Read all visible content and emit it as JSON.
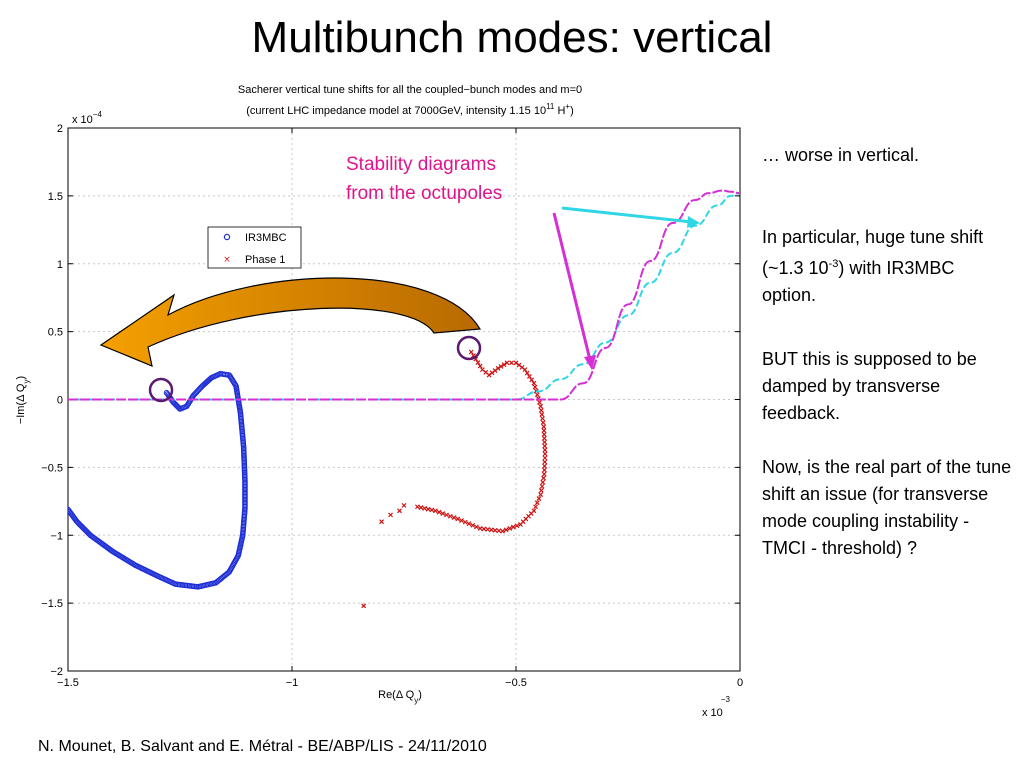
{
  "slide": {
    "title": "Multibunch modes: vertical",
    "footer": "N. Mounet, B. Salvant and E. Métral - BE/ABP/LIS - 24/11/2010",
    "notes": {
      "p1": "… worse in vertical.",
      "p2": {
        "a": "In particular, huge tune shift (~1.3 10",
        "sup": "-3",
        "b": ") with IR3MBC option."
      },
      "p3": "BUT this is supposed to be damped by transverse feedback.",
      "p4": "Now, is the real part of the tune shift an issue (for transverse mode coupling instability - TMCI - threshold) ?"
    },
    "callout": {
      "line1": "Stability diagrams",
      "line2": "from the octupoles",
      "color": "#e0158c"
    }
  },
  "chart_data": {
    "type": "scatter",
    "title": {
      "line1": "Sacherer vertical tune shifts for all the coupled−bunch modes and m=0",
      "line2a": "(current LHC impedance model at 7000GeV, intensity 1.15 10",
      "line2sup": "11",
      "line2b": " H",
      "line2sup2": "+",
      "line2c": ")"
    },
    "xlabel": {
      "main": "Re(Δ Q",
      "sub": "y",
      "end": ")"
    },
    "ylabel": {
      "main": "−Im(Δ Q",
      "sub": "y",
      "end": ")"
    },
    "xlim": [
      -1.5,
      0
    ],
    "ylim": [
      -2,
      2
    ],
    "x_multiplier": {
      "text": "x 10",
      "exp": "−3"
    },
    "y_multiplier": {
      "text": "x 10",
      "exp": "−4"
    },
    "xticks": [
      "−1.5",
      "−1",
      "−0.5",
      "0"
    ],
    "yticks": [
      "−2",
      "−1.5",
      "−1",
      "−0.5",
      "0",
      "0.5",
      "1",
      "1.5",
      "2"
    ],
    "grid": true,
    "legend_position": "upper-left",
    "series": [
      {
        "name": "IR3MBC",
        "color": "#1f2fd6",
        "marker": "circle",
        "x": [
          -1.28,
          -1.265,
          -1.25,
          -1.235,
          -1.22,
          -1.2,
          -1.18,
          -1.16,
          -1.14,
          -1.125,
          -1.115,
          -1.108,
          -1.105,
          -1.105,
          -1.11,
          -1.12,
          -1.14,
          -1.17,
          -1.21,
          -1.26,
          -1.3,
          -1.35,
          -1.4,
          -1.45,
          -1.48,
          -1.5
        ],
        "y": [
          0.05,
          -0.02,
          -0.07,
          -0.05,
          0.03,
          0.1,
          0.16,
          0.19,
          0.18,
          0.1,
          -0.1,
          -0.35,
          -0.6,
          -0.8,
          -1.0,
          -1.15,
          -1.27,
          -1.35,
          -1.38,
          -1.36,
          -1.3,
          -1.22,
          -1.12,
          -1.0,
          -0.9,
          -0.81
        ]
      },
      {
        "name": "Phase 1",
        "color": "#cc1111",
        "marker": "x",
        "x": [
          -0.6,
          -0.575,
          -0.56,
          -0.54,
          -0.52,
          -0.5,
          -0.48,
          -0.46,
          -0.445,
          -0.438,
          -0.435,
          -0.437,
          -0.445,
          -0.46,
          -0.49,
          -0.53,
          -0.58,
          -0.63,
          -0.68,
          -0.72,
          -0.75,
          -0.76,
          -0.78,
          -0.8,
          -0.84
        ],
        "y": [
          0.35,
          0.22,
          0.18,
          0.23,
          0.27,
          0.27,
          0.22,
          0.12,
          -0.05,
          -0.2,
          -0.4,
          -0.55,
          -0.7,
          -0.82,
          -0.92,
          -0.97,
          -0.95,
          -0.88,
          -0.82,
          -0.79,
          -0.78,
          -0.82,
          -0.85,
          -0.9,
          -1.52
        ]
      },
      {
        "name": "",
        "color": "#2fd6e6",
        "marker": "line",
        "x": [
          -1.5,
          -0.5,
          -0.45,
          -0.4,
          -0.35,
          -0.3,
          -0.25,
          -0.2,
          -0.15,
          -0.1,
          -0.05,
          -0.02,
          0
        ],
        "y": [
          0,
          0,
          0.06,
          0.15,
          0.26,
          0.42,
          0.62,
          0.86,
          1.08,
          1.28,
          1.43,
          1.5,
          1.52
        ]
      },
      {
        "name": "",
        "color": "#d62fd6",
        "marker": "line",
        "x": [
          -1.5,
          -0.4,
          -0.35,
          -0.3,
          -0.25,
          -0.2,
          -0.15,
          -0.1,
          -0.07,
          -0.04,
          -0.02,
          0
        ],
        "y": [
          0,
          0,
          0.12,
          0.38,
          0.7,
          1.02,
          1.3,
          1.47,
          1.52,
          1.54,
          1.53,
          1.52
        ]
      }
    ]
  }
}
